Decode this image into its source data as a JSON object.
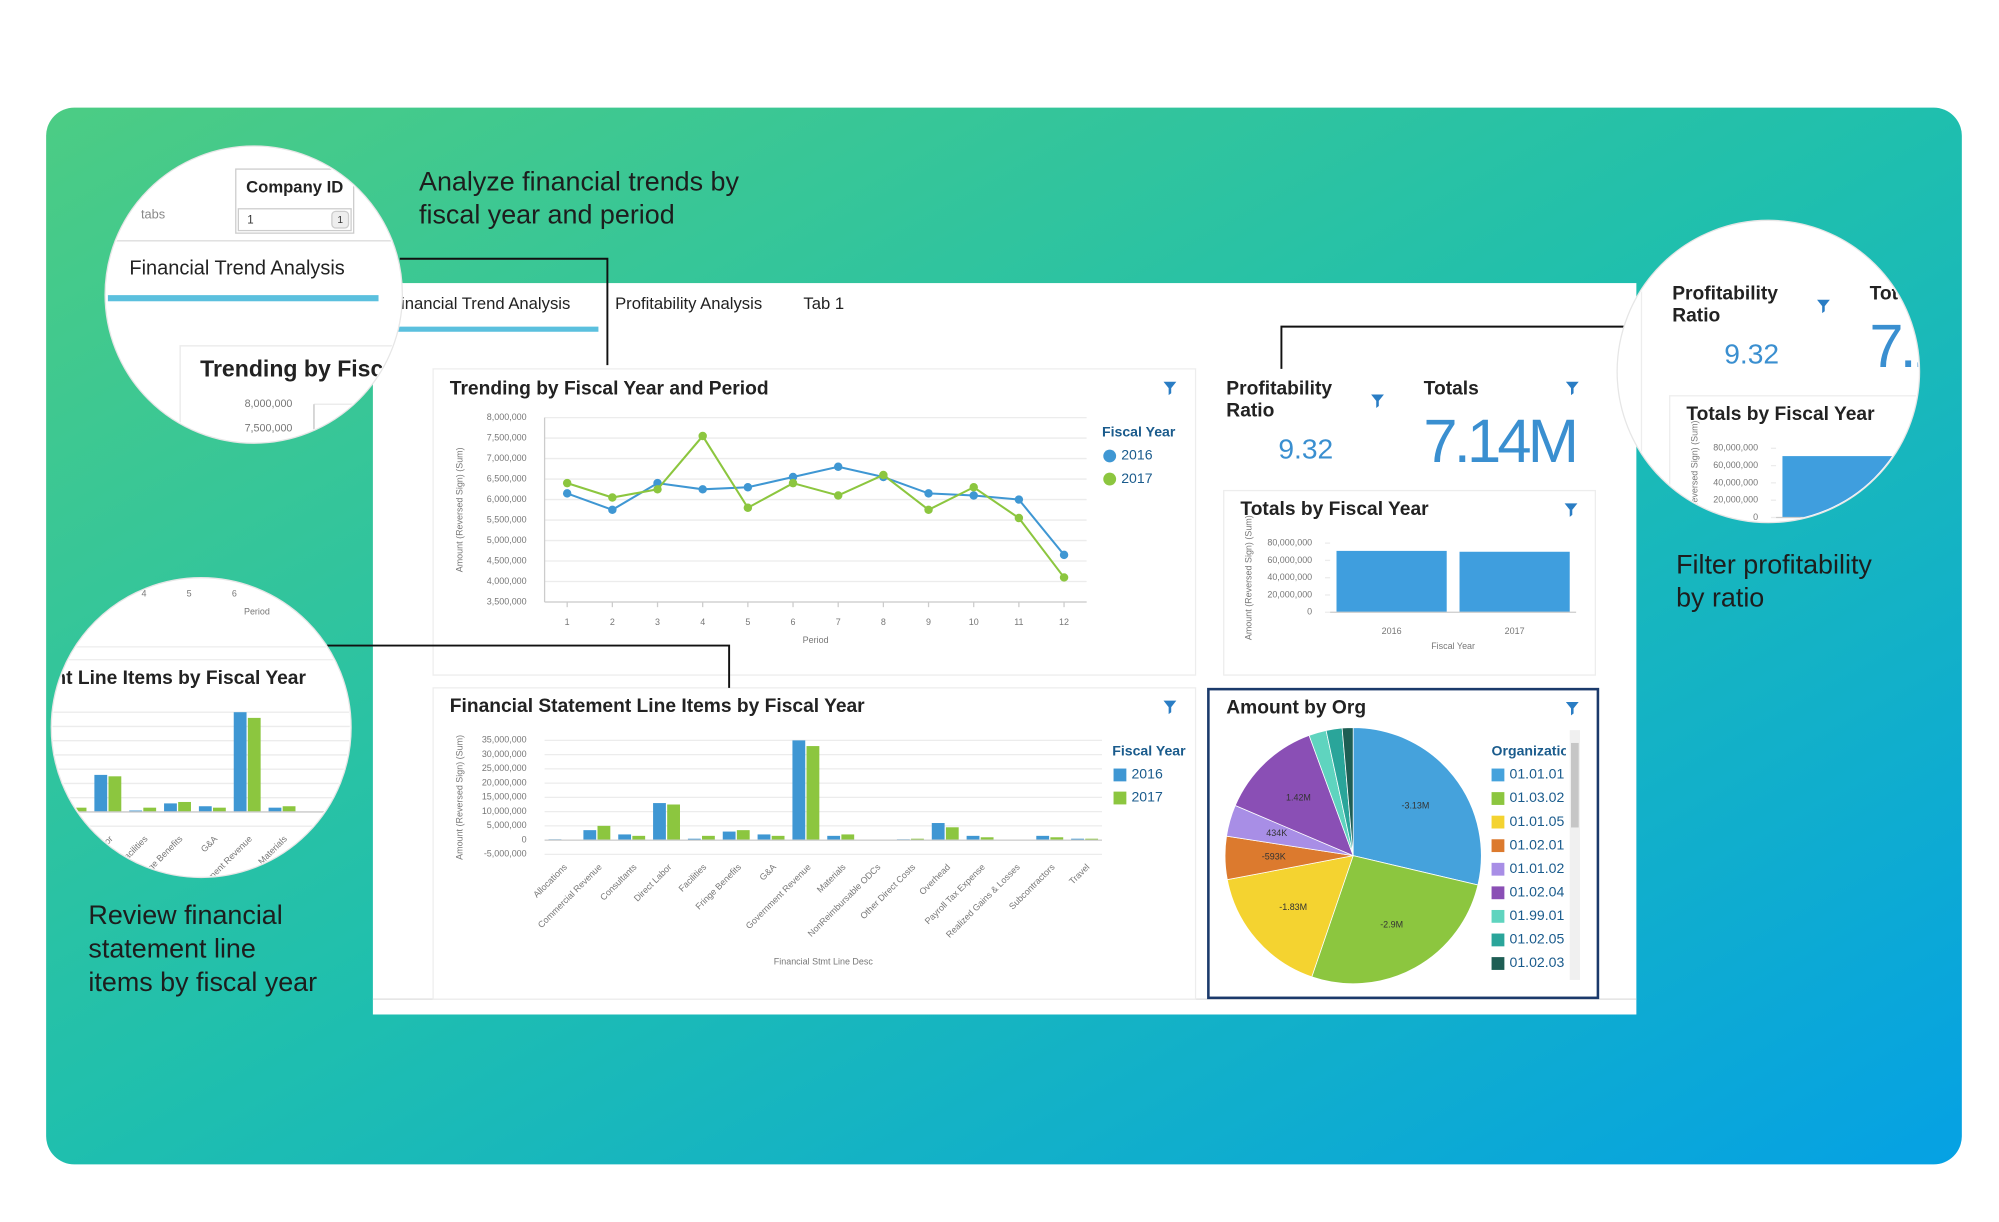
{
  "callouts": [
    {
      "lines": [
        "Analyze financial trends by",
        "fiscal year and period"
      ]
    },
    {
      "lines": [
        "Filter profitability",
        "by ratio"
      ]
    },
    {
      "lines": [
        "Review financial",
        "statement line",
        "items by fiscal year"
      ]
    }
  ],
  "tabs": [
    "Financial Trend Analysis",
    "Profitability Analysis",
    "Tab 1"
  ],
  "tabs_label": "tabs",
  "filter": {
    "label": "Company ID",
    "value": "1"
  },
  "kpis": [
    {
      "title": "Profitability Ratio",
      "value": 9.32
    },
    {
      "title": "Totals",
      "value": 7140000,
      "value_label": "7.14M"
    }
  ],
  "chart_data": [
    {
      "type": "line",
      "title": "Trending by Fiscal Year and Period",
      "x_label": "Period",
      "y_label": "Amount (Reversed Sign) (Sum)",
      "legend_title": "Fiscal Year",
      "x": [
        1,
        2,
        3,
        4,
        5,
        6,
        7,
        8,
        9,
        10,
        11,
        12
      ],
      "xlim": [
        0.5,
        12.5
      ],
      "xticks": [
        1,
        2,
        3,
        4,
        5,
        6,
        7,
        8,
        9,
        10,
        11,
        12
      ],
      "ylim": [
        3500000,
        8000000
      ],
      "yticks": [
        {
          "value": 3500000,
          "label": "3,500,000"
        },
        {
          "value": 4000000,
          "label": "4,000,000"
        },
        {
          "value": 4500000,
          "label": "4,500,000"
        },
        {
          "value": 5000000,
          "label": "5,000,000"
        },
        {
          "value": 5500000,
          "label": "5,500,000"
        },
        {
          "value": 6000000,
          "label": "6,000,000"
        },
        {
          "value": 6500000,
          "label": "6,500,000"
        },
        {
          "value": 7000000,
          "label": "7,000,000"
        },
        {
          "value": 7500000,
          "label": "7,500,000"
        },
        {
          "value": 8000000,
          "label": "8,000,000"
        }
      ],
      "grid": true,
      "series": [
        {
          "name": "2016",
          "color": "#3f97d3",
          "values": [
            6150000,
            5750000,
            6400000,
            6250000,
            6300000,
            6550000,
            6800000,
            6550000,
            6150000,
            6100000,
            6000000,
            4650000
          ]
        },
        {
          "name": "2017",
          "color": "#8cc63f",
          "values": [
            6400000,
            6050000,
            6250000,
            7550000,
            5800000,
            6400000,
            6100000,
            6600000,
            5750000,
            6300000,
            5550000,
            4100000
          ]
        }
      ]
    },
    {
      "type": "bar",
      "title": "Financial Statement Line Items by Fiscal Year",
      "x_label": "Financial Stmt Line Desc",
      "y_label": "Amount (Reversed Sign) (Sum)",
      "legend_title": "Fiscal Year",
      "categories": [
        "Allocations",
        "Commercial Revenue",
        "Consultants",
        "Direct Labor",
        "Facilities",
        "Fringe Benefits",
        "G&A",
        "Government Revenue",
        "Materials",
        "NonReimbursable ODCs",
        "Other Direct Costs",
        "Overhead",
        "Payroll Tax Expense",
        "Realized Gains & Losses",
        "Subcontractors",
        "Travel"
      ],
      "ylim": [
        -5000000,
        35000000
      ],
      "yticks": [
        {
          "value": -5000000,
          "label": "-5,000,000"
        },
        0,
        {
          "value": 5000000,
          "label": "5,000,000"
        },
        {
          "value": 10000000,
          "label": "10,000,000"
        },
        {
          "value": 15000000,
          "label": "15,000,000"
        },
        {
          "value": 20000000,
          "label": "20,000,000"
        },
        {
          "value": 25000000,
          "label": "25,000,000"
        },
        {
          "value": 30000000,
          "label": "30,000,000"
        },
        {
          "value": 35000000,
          "label": "35,000,000"
        }
      ],
      "grid": true,
      "series": [
        {
          "name": "2016",
          "color": "#3f97d3",
          "values": [
            300000,
            3500000,
            2000000,
            13000000,
            500000,
            3000000,
            2000000,
            35000000,
            1500000,
            100000,
            300000,
            6000000,
            1500000,
            100000,
            1500000,
            500000
          ]
        },
        {
          "name": "2017",
          "color": "#8cc63f",
          "values": [
            200000,
            5000000,
            1500000,
            12500000,
            1500000,
            3500000,
            1500000,
            33000000,
            2000000,
            100000,
            500000,
            4500000,
            1000000,
            100000,
            1000000,
            500000
          ]
        }
      ]
    },
    {
      "type": "bar",
      "title": "Totals by Fiscal Year",
      "x_label": "Fiscal Year",
      "y_label": "Amount (Reversed Sign) (Sum)",
      "categories": [
        "2016",
        "2017"
      ],
      "values": [
        71000000,
        70000000
      ],
      "color": "#3f9ede",
      "ylim": [
        0,
        80000000
      ],
      "yticks": [
        0,
        {
          "value": 20000000,
          "label": "20,000,000"
        },
        {
          "value": 40000000,
          "label": "40,000,000"
        },
        {
          "value": 60000000,
          "label": "60,000,000"
        },
        {
          "value": 80000000,
          "label": "80,000,000"
        }
      ],
      "grid": false
    },
    {
      "type": "pie",
      "title": "Amount by Org",
      "legend_title": "Organization",
      "categories": [
        "01.01.01",
        "01.03.02",
        "01.01.05",
        "01.02.01",
        "01.01.02",
        "01.02.04",
        "01.99.01",
        "01.02.05",
        "01.02.03"
      ],
      "values": [
        -3130000,
        -2900000,
        -1830000,
        -593000,
        434000,
        1420000,
        -240000,
        -220000,
        -150000
      ],
      "value_labels": [
        "-3.13M",
        "-2.9M",
        "-1.83M",
        "-593K",
        "434K",
        "1.42M",
        null,
        null,
        null
      ],
      "colors": [
        "#45a2dc",
        "#8cc63f",
        "#f4d330",
        "#dc7a2e",
        "#a88ee6",
        "#8a4fb5",
        "#5fd4bf",
        "#2aa59a",
        "#1e5e54"
      ]
    }
  ]
}
